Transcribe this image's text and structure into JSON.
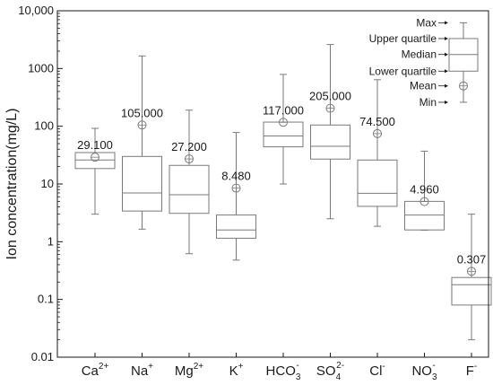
{
  "chart_data": {
    "type": "boxplot",
    "ylabel": "Ion concentration(mg/L)",
    "yscale": "log",
    "ylim": [
      0.01,
      10000
    ],
    "yticks": [
      "0.01",
      "0.1",
      "1",
      "10",
      "100",
      "1000",
      "10,000"
    ],
    "categories": [
      {
        "base": "Ca",
        "sup": "2+",
        "sub": ""
      },
      {
        "base": "Na",
        "sup": "+",
        "sub": ""
      },
      {
        "base": "Mg",
        "sup": "2+",
        "sub": ""
      },
      {
        "base": "K",
        "sup": "+",
        "sub": ""
      },
      {
        "base": "HCO",
        "sub": "3",
        "sup": "-"
      },
      {
        "base": "SO",
        "sub": "4",
        "sup": "2-"
      },
      {
        "base": "Cl",
        "sup": "-",
        "sub": ""
      },
      {
        "base": "NO",
        "sub": "3",
        "sup": "-"
      },
      {
        "base": "F",
        "sup": "-",
        "sub": ""
      }
    ],
    "boxes": [
      {
        "min": 3.0,
        "q1": 18.5,
        "median": 26.0,
        "q3": 35.0,
        "max": 92.0,
        "mean": 29.1,
        "mean_label": "29.100"
      },
      {
        "min": 1.65,
        "q1": 3.4,
        "median": 7.0,
        "q3": 30.0,
        "max": 1650.0,
        "mean": 105.0,
        "mean_label": "105.000"
      },
      {
        "min": 0.62,
        "q1": 3.1,
        "median": 6.5,
        "q3": 21.0,
        "max": 190.0,
        "mean": 27.2,
        "mean_label": "27.200"
      },
      {
        "min": 0.48,
        "q1": 1.15,
        "median": 1.6,
        "q3": 2.9,
        "max": 78.0,
        "mean": 8.48,
        "mean_label": "8.480"
      },
      {
        "min": 10.0,
        "q1": 44.0,
        "median": 68.0,
        "q3": 118.0,
        "max": 790.0,
        "mean": 117.0,
        "mean_label": "117.000"
      },
      {
        "min": 2.5,
        "q1": 27.0,
        "median": 45.0,
        "q3": 105.0,
        "max": 2600.0,
        "mean": 205.0,
        "mean_label": "205.000"
      },
      {
        "min": 1.85,
        "q1": 4.1,
        "median": 6.9,
        "q3": 26.0,
        "max": 640.0,
        "mean": 74.5,
        "mean_label": "74.500"
      },
      {
        "min": 1.58,
        "q1": 1.6,
        "median": 2.9,
        "q3": 5.0,
        "max": 37.0,
        "mean": 4.96,
        "mean_label": "4.960"
      },
      {
        "min": 0.02,
        "q1": 0.08,
        "median": 0.18,
        "q3": 0.24,
        "max": 3.0,
        "mean": 0.307,
        "mean_label": "0.307"
      }
    ],
    "legend": {
      "placement": "top-right",
      "labels": [
        "Max",
        "Upper quartile",
        "Median",
        "Lower quartile",
        "Mean",
        "Min"
      ],
      "example": {
        "min": 260,
        "q1": 900,
        "median": 1750,
        "q3": 3300,
        "max": 6200,
        "mean": 500
      }
    },
    "colors": {
      "stroke": "#7a7a7a",
      "axis": "#1a1a1a",
      "text": "#1a1a1a",
      "background": "#ffffff"
    }
  }
}
